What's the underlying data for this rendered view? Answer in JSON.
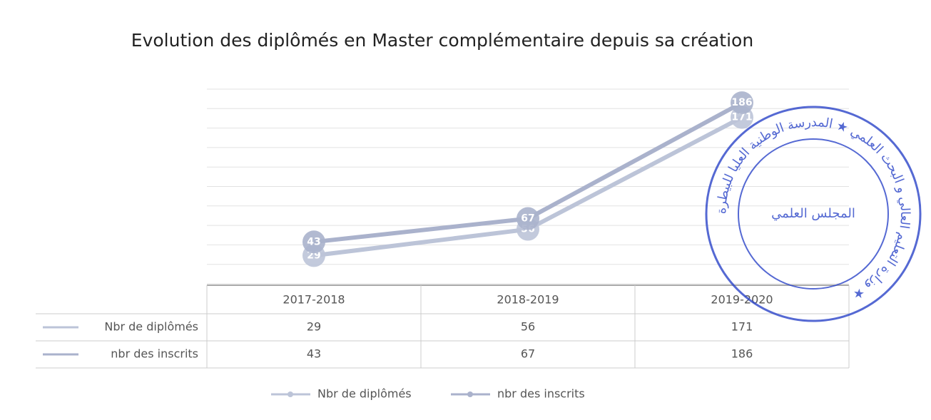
{
  "chart_data": {
    "type": "line",
    "title": "Evolution des diplômés en Master complémentaire depuis sa création",
    "categories": [
      "2017-2018",
      "2018-2019",
      "2019-2020"
    ],
    "series": [
      {
        "name": "Nbr de diplômés",
        "color": "#bcc4d8",
        "values": [
          29,
          56,
          171
        ]
      },
      {
        "name": "nbr des inscrits",
        "color": "#aab2cc",
        "values": [
          43,
          67,
          186
        ]
      }
    ],
    "ylim": [
      0,
      200
    ],
    "yticks": [
      0,
      20,
      40,
      60,
      80,
      100,
      120,
      140,
      160,
      180,
      200
    ],
    "grid": true,
    "data_table": true
  },
  "stamp": {
    "center": "المجلس العلمي",
    "ring": "وزارة التعليم العالي و البحث العلمي ★ المدرسة الوطنية العليا للبيطرة ★"
  }
}
